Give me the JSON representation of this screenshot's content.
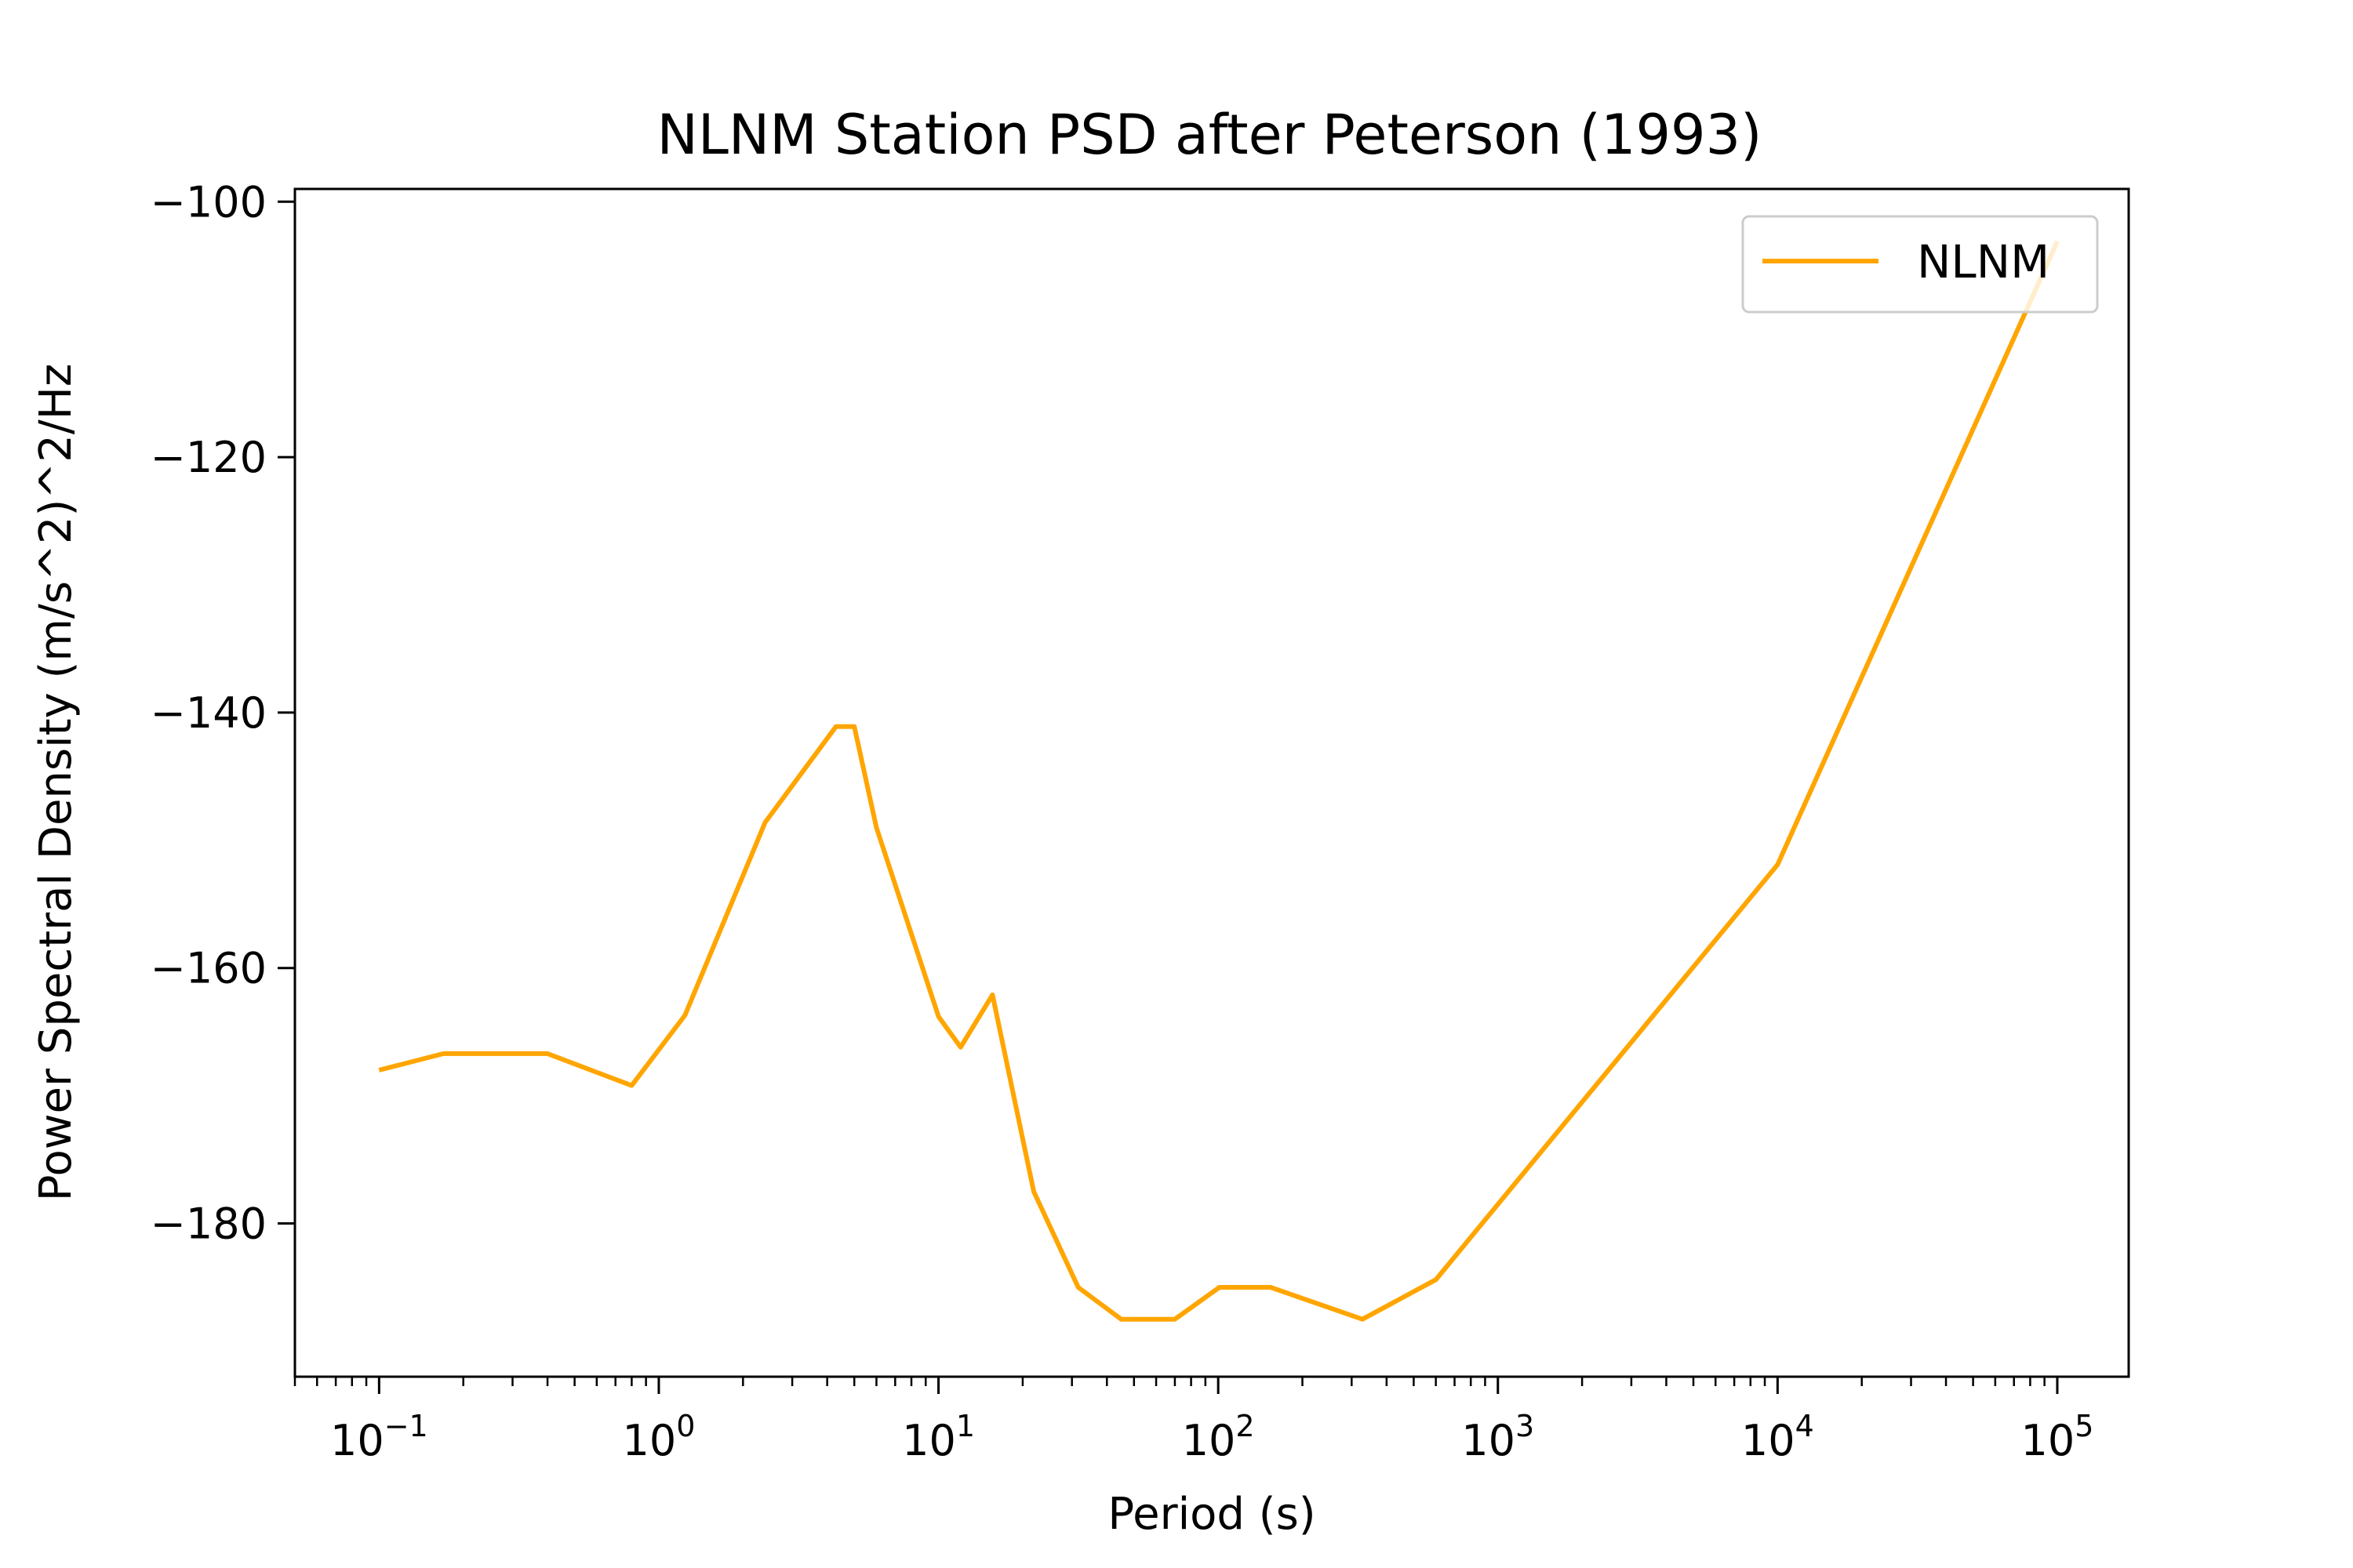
{
  "chart_data": {
    "type": "line",
    "title": "NLNM Station PSD after Peterson (1993)",
    "xlabel": "Period (s)",
    "ylabel": "Power Spectral Density (m/s^2)^2/Hz",
    "xscale": "log",
    "xlim": [
      0.05,
      180000
    ],
    "ylim": [
      -192,
      -99
    ],
    "grid": false,
    "legend": {
      "placement": "top-right",
      "entries": [
        "NLNM"
      ]
    },
    "x_ticks": [
      {
        "base": "10",
        "exp": "−1",
        "value": 0.1
      },
      {
        "base": "10",
        "exp": "0",
        "value": 1
      },
      {
        "base": "10",
        "exp": "1",
        "value": 10
      },
      {
        "base": "10",
        "exp": "2",
        "value": 100
      },
      {
        "base": "10",
        "exp": "3",
        "value": 1000
      },
      {
        "base": "10",
        "exp": "4",
        "value": 10000
      },
      {
        "base": "10",
        "exp": "5",
        "value": 100000
      }
    ],
    "y_ticks": [
      {
        "label": "−100",
        "value": -100
      },
      {
        "label": "−120",
        "value": -120
      },
      {
        "label": "−140",
        "value": -140
      },
      {
        "label": "−160",
        "value": -160
      },
      {
        "label": "−180",
        "value": -180
      }
    ],
    "series": [
      {
        "name": "NLNM",
        "color": "#ffa500",
        "x": [
          0.1,
          0.17,
          0.4,
          0.8,
          1.24,
          2.4,
          4.3,
          5.0,
          6.0,
          10.0,
          12.0,
          15.6,
          21.9,
          31.6,
          45.0,
          70.0,
          101.0,
          154.0,
          328.0,
          600.0,
          10000.0,
          100000.0
        ],
        "y": [
          -168.0,
          -166.7,
          -166.7,
          -169.2,
          -163.7,
          -148.6,
          -141.1,
          -141.1,
          -149.0,
          -163.8,
          -166.2,
          -162.1,
          -177.5,
          -185.0,
          -187.5,
          -187.5,
          -185.0,
          -185.0,
          -187.5,
          -184.4,
          -151.9,
          -103.1
        ]
      }
    ]
  }
}
